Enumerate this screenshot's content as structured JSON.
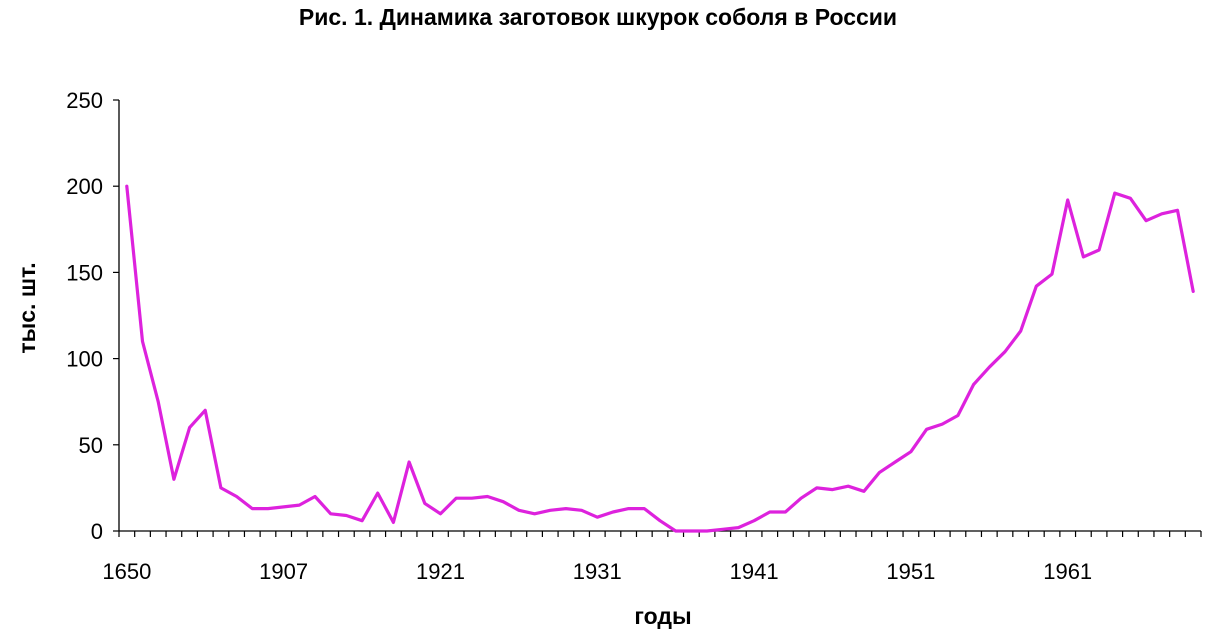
{
  "chart_data": {
    "type": "line",
    "title": "Рис. 1. Динамика заготовок шкурок соболя в России",
    "xlabel": "годы",
    "ylabel": "тыс. шт.",
    "ylim": [
      0,
      250
    ],
    "yticks": [
      0,
      50,
      100,
      150,
      200,
      250
    ],
    "x_tick_labels": [
      {
        "index": 0,
        "label": "1650"
      },
      {
        "index": 10,
        "label": "1907"
      },
      {
        "index": 20,
        "label": "1921"
      },
      {
        "index": 30,
        "label": "1931"
      },
      {
        "index": 40,
        "label": "1941"
      },
      {
        "index": 50,
        "label": "1951"
      },
      {
        "index": 60,
        "label": "1961"
      }
    ],
    "grid": false,
    "legend": "none",
    "colors": {
      "line": "#dd22dd",
      "axis": "#000000"
    },
    "series": [
      {
        "values": [
          200,
          110,
          75,
          30,
          60,
          70,
          25,
          20,
          13,
          13,
          14,
          15,
          20,
          10,
          9,
          6,
          22,
          5,
          40,
          16,
          10,
          19,
          19,
          20,
          17,
          12,
          10,
          12,
          13,
          12,
          8,
          11,
          13,
          13,
          6,
          0,
          0,
          0,
          1,
          2,
          6,
          11,
          11,
          19,
          25,
          24,
          26,
          23,
          34,
          40,
          46,
          59,
          62,
          67,
          85,
          95,
          104,
          116,
          142,
          149,
          192,
          159,
          163,
          196,
          193,
          180,
          184,
          186,
          139
        ]
      }
    ]
  }
}
